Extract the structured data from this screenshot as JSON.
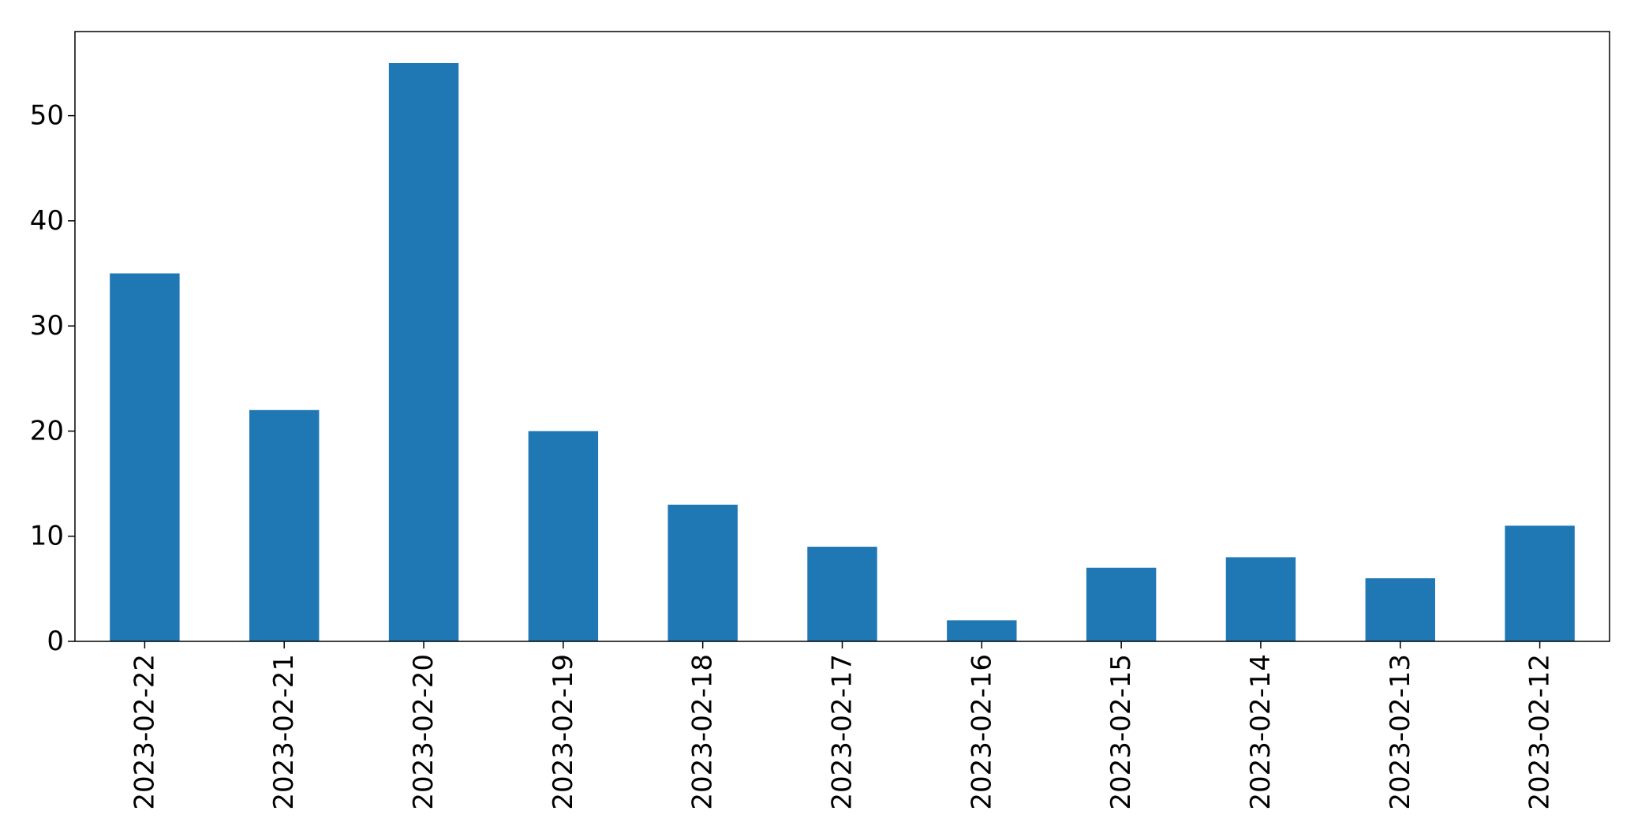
{
  "chart_data": {
    "type": "bar",
    "categories": [
      "2023-02-22",
      "2023-02-21",
      "2023-02-20",
      "2023-02-19",
      "2023-02-18",
      "2023-02-17",
      "2023-02-16",
      "2023-02-15",
      "2023-02-14",
      "2023-02-13",
      "2023-02-12"
    ],
    "values": [
      35,
      22,
      55,
      20,
      13,
      9,
      2,
      7,
      8,
      6,
      11
    ],
    "title": "",
    "xlabel": "",
    "ylabel": "",
    "ylim": [
      0,
      58
    ],
    "yticks": [
      0,
      10,
      20,
      30,
      40,
      50
    ],
    "bar_color": "#1f77b4",
    "grid": false,
    "legend": "none",
    "x_tick_rotation": "vertical"
  }
}
